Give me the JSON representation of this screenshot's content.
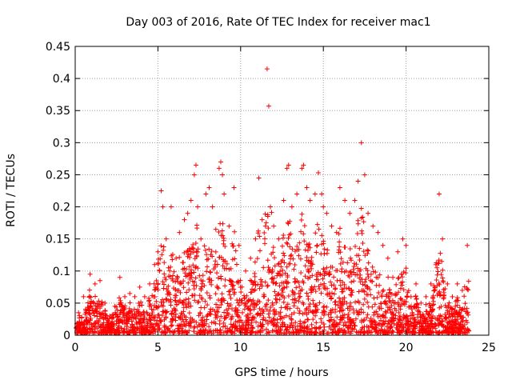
{
  "chart_data": {
    "type": "scatter",
    "title": "Day 003 of 2016, Rate Of TEC Index for receiver mac1",
    "xlabel": "GPS time / hours",
    "ylabel": "ROTI / TECUs",
    "xlim": [
      0,
      25
    ],
    "ylim": [
      0,
      0.45
    ],
    "xticks": [
      0,
      5,
      10,
      15,
      20,
      25
    ],
    "yticks": [
      0,
      0.05,
      0.1,
      0.15,
      0.2,
      0.25,
      0.3,
      0.35,
      0.4,
      0.45
    ],
    "grid": true,
    "marker": "+",
    "color": "#ff0000",
    "series": [
      {
        "name": "ROTI",
        "x": [
          0.2,
          0.5,
          0.9,
          1.2,
          1.5,
          1.8,
          2.4,
          2.7,
          3.0,
          3.3,
          3.6,
          3.9,
          4.2,
          4.5,
          4.8,
          5.0,
          5.1,
          5.2,
          5.3,
          5.5,
          5.8,
          6.1,
          6.3,
          6.6,
          6.8,
          7.0,
          7.2,
          7.3,
          7.4,
          7.6,
          7.9,
          8.1,
          8.3,
          8.5,
          8.7,
          8.8,
          8.9,
          9.0,
          9.3,
          9.6,
          9.9,
          10.3,
          10.6,
          10.9,
          11.1,
          11.3,
          11.5,
          11.6,
          11.7,
          11.8,
          12.0,
          12.3,
          12.6,
          12.8,
          12.9,
          13.1,
          13.4,
          13.7,
          13.8,
          14.0,
          14.2,
          14.5,
          14.7,
          14.9,
          15.0,
          15.2,
          15.5,
          15.8,
          16.0,
          16.3,
          16.6,
          16.9,
          17.1,
          17.3,
          17.5,
          17.7,
          18.0,
          18.3,
          18.6,
          18.9,
          19.2,
          19.5,
          19.8,
          20.0,
          20.3,
          20.6,
          20.9,
          21.2,
          21.5,
          21.8,
          22.0,
          22.2,
          22.5,
          22.8,
          23.1,
          23.4,
          23.7
        ],
        "y": [
          0.035,
          0.06,
          0.095,
          0.08,
          0.085,
          0.05,
          0.045,
          0.09,
          0.06,
          0.065,
          0.06,
          0.075,
          0.06,
          0.08,
          0.11,
          0.13,
          0.1,
          0.225,
          0.2,
          0.15,
          0.2,
          0.12,
          0.16,
          0.18,
          0.19,
          0.21,
          0.25,
          0.265,
          0.2,
          0.15,
          0.22,
          0.23,
          0.2,
          0.165,
          0.26,
          0.27,
          0.25,
          0.22,
          0.17,
          0.23,
          0.14,
          0.1,
          0.12,
          0.15,
          0.245,
          0.18,
          0.17,
          0.415,
          0.357,
          0.2,
          0.17,
          0.15,
          0.21,
          0.26,
          0.265,
          0.2,
          0.22,
          0.26,
          0.265,
          0.23,
          0.21,
          0.22,
          0.253,
          0.22,
          0.2,
          0.19,
          0.17,
          0.16,
          0.23,
          0.21,
          0.19,
          0.21,
          0.24,
          0.3,
          0.25,
          0.19,
          0.17,
          0.16,
          0.14,
          0.12,
          0.09,
          0.13,
          0.15,
          0.14,
          0.06,
          0.08,
          0.05,
          0.06,
          0.08,
          0.11,
          0.22,
          0.15,
          0.08,
          0.06,
          0.08,
          0.07,
          0.14
        ]
      }
    ]
  }
}
